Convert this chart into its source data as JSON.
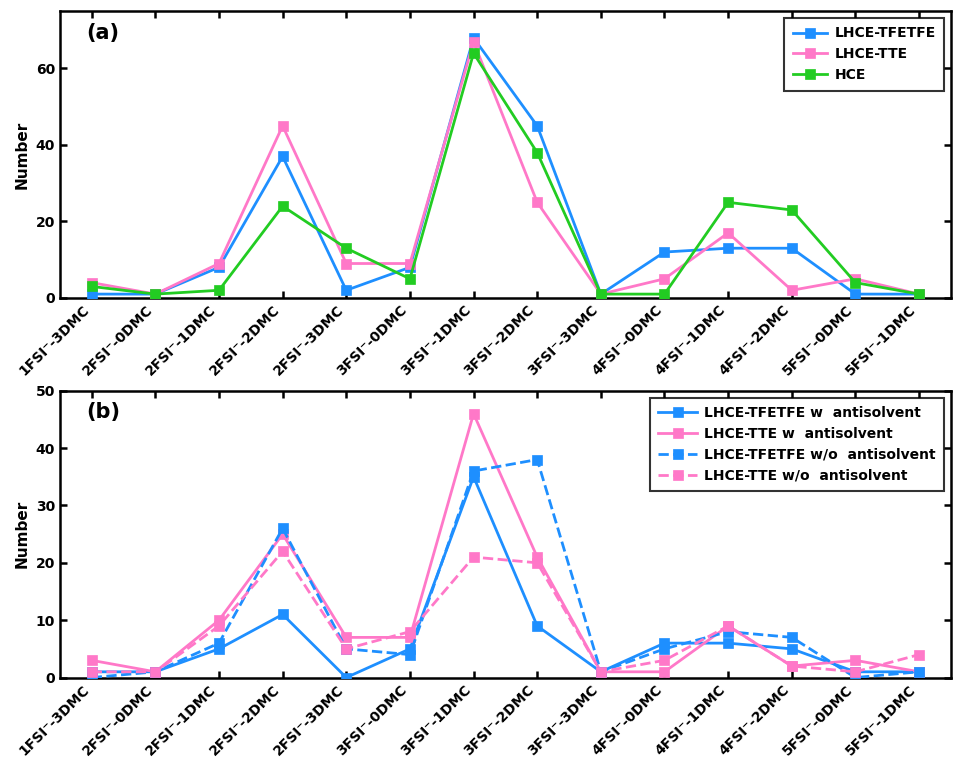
{
  "x_labels": [
    "1FSI⁻-3DMC",
    "2FSI⁻-0DMC",
    "2FSI⁻-1DMC",
    "2FSI⁻-2DMC",
    "2FSI⁻-3DMC",
    "3FSI⁻-0DMC",
    "3FSI⁻-1DMC",
    "3FSI⁻-2DMC",
    "3FSI⁻-3DMC",
    "4FSI⁻-0DMC",
    "4FSI⁻-1DMC",
    "4FSI⁻-2DMC",
    "5FSI⁻-0DMC",
    "5FSI⁻-1DMC"
  ],
  "panel_a": {
    "LHCE_TFETFE": [
      1,
      1,
      8,
      37,
      2,
      8,
      68,
      45,
      1,
      12,
      13,
      13,
      1,
      1
    ],
    "LHCE_TTE": [
      4,
      1,
      9,
      45,
      9,
      9,
      67,
      25,
      1,
      5,
      17,
      2,
      5,
      1
    ],
    "HCE": [
      3,
      1,
      2,
      24,
      13,
      5,
      64,
      38,
      1,
      1,
      25,
      23,
      4,
      1
    ]
  },
  "panel_b": {
    "LHCE_TFETFE_w": [
      1,
      1,
      5,
      11,
      0,
      5,
      35,
      9,
      1,
      6,
      6,
      5,
      1,
      1
    ],
    "LHCE_TTE_w": [
      3,
      1,
      10,
      25,
      7,
      7,
      46,
      21,
      1,
      1,
      9,
      2,
      3,
      1
    ],
    "LHCE_TFETFE_wo": [
      0,
      1,
      6,
      26,
      5,
      4,
      36,
      38,
      1,
      5,
      8,
      7,
      0,
      1
    ],
    "LHCE_TTE_wo": [
      1,
      1,
      9,
      22,
      5,
      8,
      21,
      20,
      1,
      3,
      9,
      2,
      1,
      4
    ]
  },
  "colors": {
    "blue": "#1E8FFF",
    "pink": "#FF78C8",
    "green": "#22CC22"
  },
  "panel_a_ylim": [
    0,
    75
  ],
  "panel_a_yticks": [
    0,
    20,
    40,
    60
  ],
  "panel_b_ylim": [
    0,
    50
  ],
  "panel_b_yticks": [
    0,
    10,
    20,
    30,
    40,
    50
  ],
  "marker": "s",
  "markersize": 7,
  "linewidth": 2.0,
  "legend_a": [
    "LHCE-TFETFE",
    "LHCE-TTE",
    "HCE"
  ],
  "legend_b_solid": [
    "LHCE-TFETFE w  antisolvent",
    "LHCE-TTE w  antisolvent"
  ],
  "legend_b_dashed": [
    "LHCE-TFETFE w/o  antisolvent",
    "LHCE-TTE w/o  antisolvent"
  ],
  "label_fontsize": 11,
  "tick_fontsize": 10,
  "legend_fontsize": 10,
  "ylabel": "Number",
  "panel_a_label": "(a)",
  "panel_b_label": "(b)"
}
